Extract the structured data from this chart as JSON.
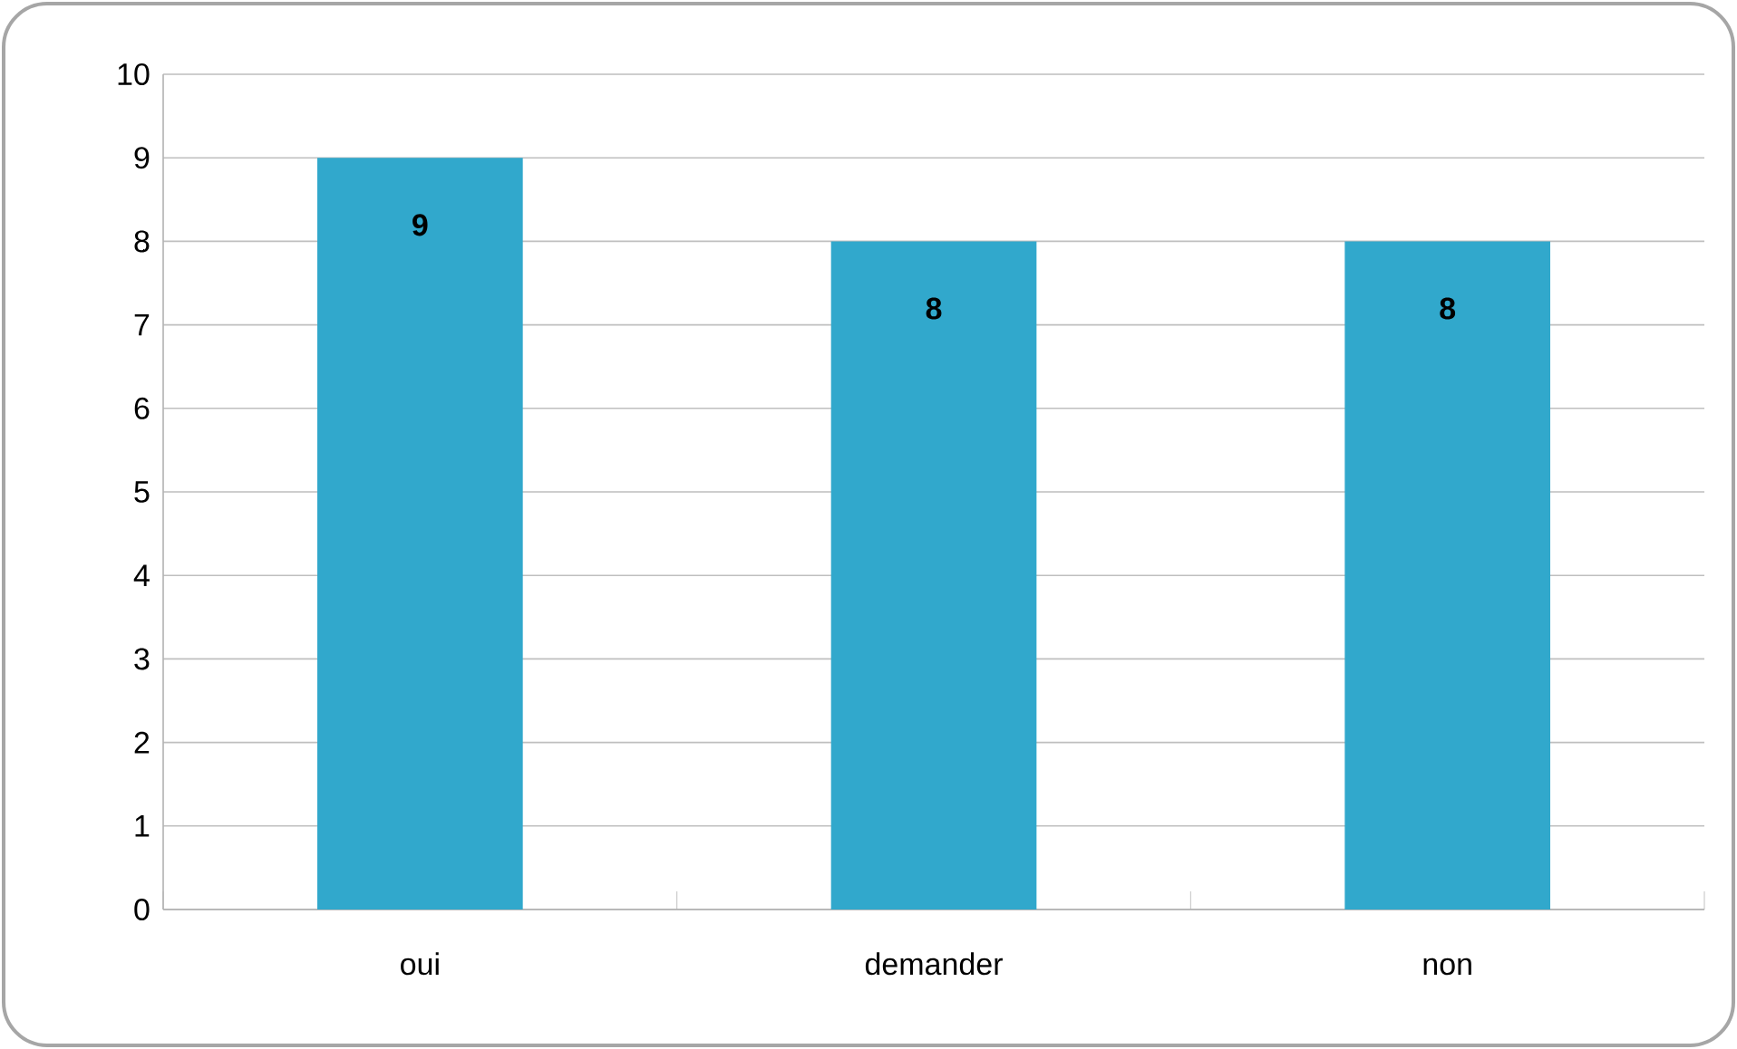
{
  "chart_data": {
    "type": "bar",
    "categories": [
      "oui",
      "demander",
      "non"
    ],
    "values": [
      9,
      8,
      8
    ],
    "value_labels": [
      "9",
      "8",
      "8"
    ],
    "color": "#31a8cc",
    "ylim": [
      0,
      10
    ],
    "yticks": [
      0,
      1,
      2,
      3,
      4,
      5,
      6,
      7,
      8,
      9,
      10
    ],
    "grid": "y"
  }
}
